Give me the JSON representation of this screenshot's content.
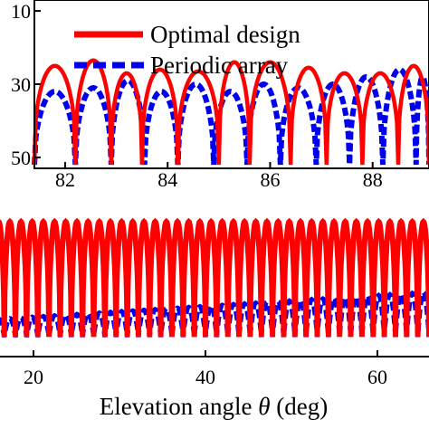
{
  "chart_data": [
    {
      "type": "line",
      "role": "main-plot",
      "xlabel": "Elevation angle θ (deg)",
      "xlabel_parts": {
        "prefix": "Elevation angle ",
        "symbol": "θ",
        "suffix": " (deg)"
      },
      "xlim": [
        14,
        66
      ],
      "x_ticks": [
        20,
        40,
        60
      ],
      "x_tick_labels": [
        "20",
        "40",
        "60"
      ],
      "ylim": [
        -55,
        12
      ],
      "y_tick_labels": [],
      "grid": false,
      "series": [
        {
          "name": "Optimal design",
          "color": "#ff0000",
          "style": "solid",
          "x_start": 14,
          "x_end": 66,
          "lobe_count": 40,
          "peak_level": -7,
          "null_level": -48
        },
        {
          "name": "Periodic array",
          "color": "#0000ee",
          "style": "dashed",
          "x_start": 14,
          "x_end": 66,
          "lobe_count": 40,
          "band_bottom": -48,
          "band_top_start": -42,
          "band_top_end": -32
        }
      ]
    },
    {
      "type": "line",
      "role": "inset-zoom",
      "xlim": [
        81.4,
        89.1
      ],
      "x_ticks": [
        82,
        84,
        86,
        88
      ],
      "x_tick_labels": [
        "82",
        "84",
        "86",
        "88"
      ],
      "ylim": [
        -52,
        -8
      ],
      "y_ticks": [
        -10,
        -30,
        -50
      ],
      "y_tick_labels": [
        "10",
        "30",
        "50"
      ],
      "legend": {
        "placement": "top",
        "entries": [
          "Optimal design",
          "Periodic array"
        ]
      },
      "series": [
        {
          "name": "Optimal design",
          "color": "#ff0000",
          "style": "solid",
          "nulls": [
            81.4,
            82.2,
            82.9,
            83.5,
            84.2,
            85.0,
            85.6,
            86.4,
            87.1,
            87.8,
            88.5,
            89.1
          ],
          "peaks": [
            -25,
            -23.5,
            -27,
            -26,
            -26.5,
            -24,
            -24,
            -25.5,
            -27,
            -27,
            -25
          ]
        },
        {
          "name": "Periodic array",
          "color": "#0000ee",
          "style": "dashed",
          "nulls": [
            81.4,
            82.2,
            82.9,
            83.55,
            84.2,
            84.9,
            85.55,
            86.2,
            86.9,
            87.55,
            88.2,
            88.85,
            89.1
          ],
          "peaks": [
            -32,
            -31,
            -29,
            -32,
            -30,
            -32,
            -30,
            -31,
            -30,
            -28,
            -26,
            -28
          ]
        }
      ]
    }
  ]
}
